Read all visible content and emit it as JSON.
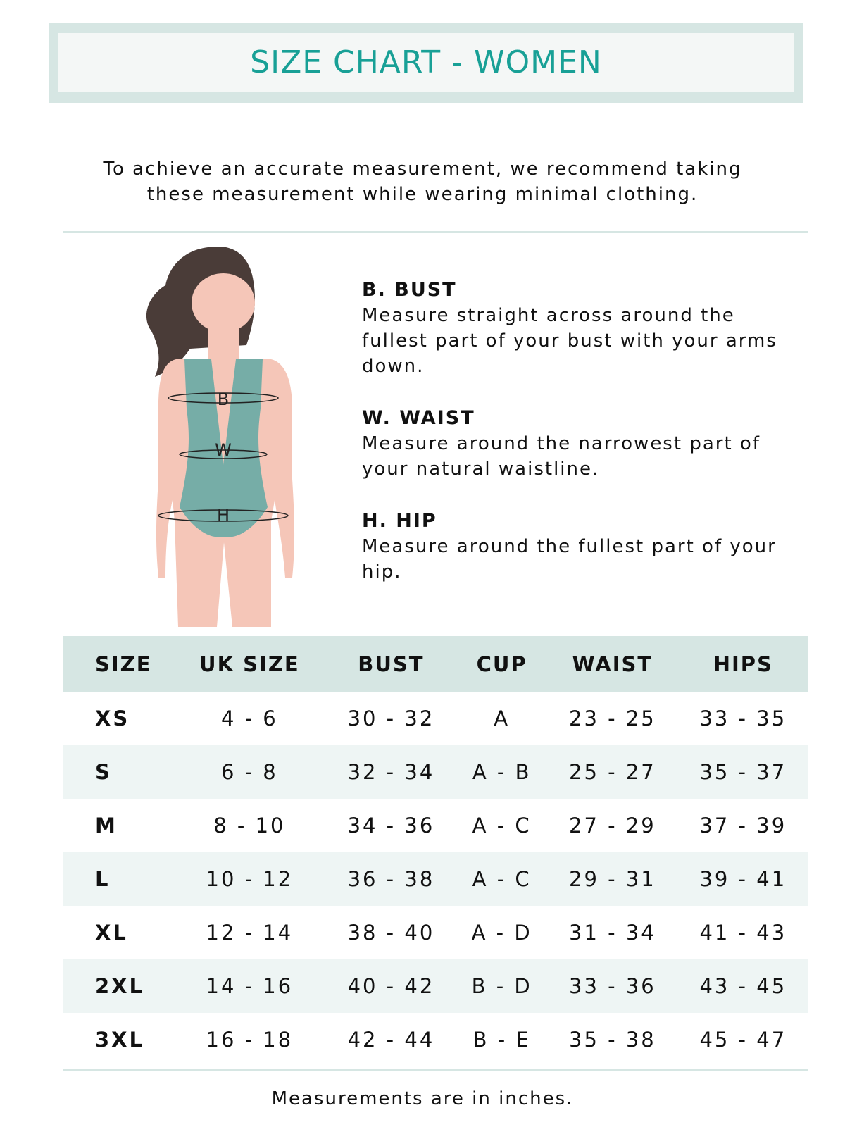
{
  "title": "SIZE CHART - WOMEN",
  "intro": {
    "line1": "To achieve an accurate measurement, we recommend taking",
    "line2": "these measurement while wearing minimal clothing."
  },
  "figure": {
    "labels": {
      "bust": "B",
      "waist": "W",
      "hip": "H"
    },
    "colors": {
      "skin": "#f5c6b8",
      "hair": "#4a3c38",
      "swimsuit": "#76ada7"
    }
  },
  "measurements": [
    {
      "heading": "B. BUST",
      "text": "Measure straight across around the fullest part of your bust with your arms down."
    },
    {
      "heading": "W. WAIST",
      "text": "Measure around the narrowest part of your natural waistline."
    },
    {
      "heading": "H. HIP",
      "text": "Measure around the fullest part of your hip."
    }
  ],
  "table": {
    "headers": [
      "SIZE",
      "UK SIZE",
      "BUST",
      "CUP",
      "WAIST",
      "HIPS"
    ],
    "rows": [
      [
        "XS",
        "4 - 6",
        "30 - 32",
        "A",
        "23 - 25",
        "33 - 35"
      ],
      [
        "S",
        "6 - 8",
        "32 - 34",
        "A - B",
        "25 - 27",
        "35 - 37"
      ],
      [
        "M",
        "8 - 10",
        "34 - 36",
        "A - C",
        "27 - 29",
        "37 - 39"
      ],
      [
        "L",
        "10 - 12",
        "36 - 38",
        "A - C",
        "29 - 31",
        "39 - 41"
      ],
      [
        "XL",
        "12 - 14",
        "38 - 40",
        "A - D",
        "31 - 34",
        "41 - 43"
      ],
      [
        "2XL",
        "14 - 16",
        "40 - 42",
        "B - D",
        "33 - 36",
        "43 - 45"
      ],
      [
        "3XL",
        "16 - 18",
        "42 - 44",
        "B - E",
        "35 - 38",
        "45 - 47"
      ]
    ]
  },
  "footer": "Measurements are in inches.",
  "colors": {
    "accent": "#18a096",
    "band": "#d6e6e3",
    "row_alt": "#eef5f4"
  }
}
